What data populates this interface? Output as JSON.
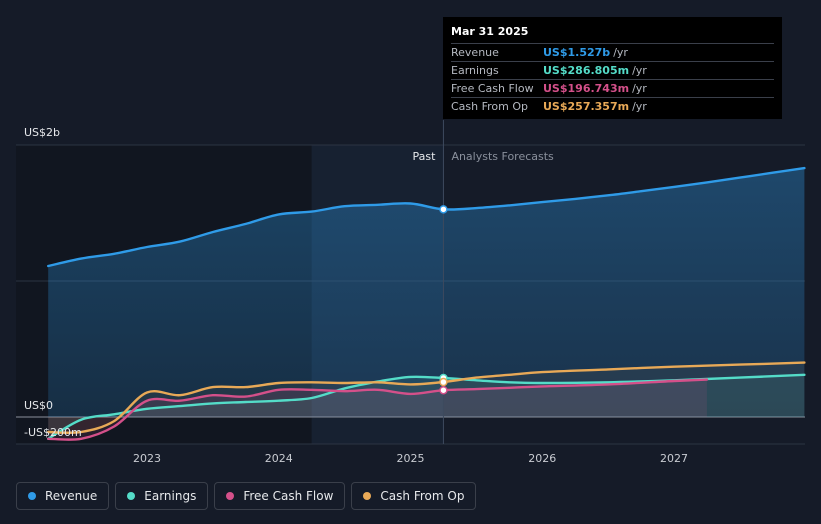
{
  "tooltip": {
    "date": "Mar 31 2025",
    "rows": [
      {
        "name": "Revenue",
        "value": "US$1.527b",
        "unit": "/yr",
        "color": "#2f9be8"
      },
      {
        "name": "Earnings",
        "value": "US$286.805m",
        "unit": "/yr",
        "color": "#54dcc8"
      },
      {
        "name": "Free Cash Flow",
        "value": "US$196.743m",
        "unit": "/yr",
        "color": "#d4508a"
      },
      {
        "name": "Cash From Op",
        "value": "US$257.357m",
        "unit": "/yr",
        "color": "#e8a957"
      }
    ]
  },
  "labels": {
    "past": "Past",
    "forecast": "Analysts Forecasts"
  },
  "legend": [
    {
      "name": "Revenue",
      "color": "#2f9be8"
    },
    {
      "name": "Earnings",
      "color": "#54dcc8"
    },
    {
      "name": "Free Cash Flow",
      "color": "#d4508a"
    },
    {
      "name": "Cash From Op",
      "color": "#e8a957"
    }
  ],
  "chart_data": {
    "type": "line",
    "title": "",
    "xlabel": "",
    "ylabel": "",
    "x_ticks": [
      2023,
      2024,
      2025,
      2026,
      2027
    ],
    "y_ticks": [
      {
        "value": 2000,
        "label": "US$2b"
      },
      {
        "value": 0,
        "label": "US$0"
      },
      {
        "value": -200,
        "label": "-US$200m"
      }
    ],
    "unit": "US$ millions",
    "xlim": [
      2022.1,
      2027.99
    ],
    "ylim": [
      -200,
      2000
    ],
    "past_end": 2025.25,
    "grid": true,
    "series": [
      {
        "name": "Revenue",
        "color": "#2f9be8",
        "points": [
          [
            2022.25,
            1110
          ],
          [
            2022.5,
            1165
          ],
          [
            2022.75,
            1200
          ],
          [
            2023.0,
            1250
          ],
          [
            2023.25,
            1290
          ],
          [
            2023.5,
            1360
          ],
          [
            2023.75,
            1420
          ],
          [
            2024.0,
            1490
          ],
          [
            2024.25,
            1510
          ],
          [
            2024.5,
            1550
          ],
          [
            2024.75,
            1560
          ],
          [
            2025.0,
            1570
          ],
          [
            2025.25,
            1527
          ],
          [
            2025.5,
            1536
          ],
          [
            2025.75,
            1556
          ],
          [
            2026.0,
            1580
          ],
          [
            2026.25,
            1604
          ],
          [
            2026.5,
            1630
          ],
          [
            2026.75,
            1660
          ],
          [
            2027.0,
            1692
          ],
          [
            2027.25,
            1725
          ],
          [
            2027.5,
            1760
          ],
          [
            2027.75,
            1796
          ],
          [
            2027.99,
            1830
          ]
        ]
      },
      {
        "name": "Earnings",
        "color": "#54dcc8",
        "points": [
          [
            2022.25,
            -160
          ],
          [
            2022.5,
            -20
          ],
          [
            2022.75,
            20
          ],
          [
            2023.0,
            60
          ],
          [
            2023.25,
            80
          ],
          [
            2023.5,
            100
          ],
          [
            2023.75,
            110
          ],
          [
            2024.0,
            120
          ],
          [
            2024.25,
            140
          ],
          [
            2024.5,
            210
          ],
          [
            2024.75,
            260
          ],
          [
            2025.0,
            295
          ],
          [
            2025.25,
            287
          ],
          [
            2025.5,
            270
          ],
          [
            2025.75,
            255
          ],
          [
            2026.0,
            250
          ],
          [
            2026.5,
            255
          ],
          [
            2027.0,
            270
          ],
          [
            2027.5,
            290
          ],
          [
            2027.99,
            310
          ]
        ]
      },
      {
        "name": "Free Cash Flow",
        "color": "#d4508a",
        "points": [
          [
            2022.25,
            -160
          ],
          [
            2022.5,
            -160
          ],
          [
            2022.75,
            -70
          ],
          [
            2023.0,
            120
          ],
          [
            2023.25,
            120
          ],
          [
            2023.5,
            160
          ],
          [
            2023.75,
            150
          ],
          [
            2024.0,
            200
          ],
          [
            2024.25,
            200
          ],
          [
            2024.5,
            190
          ],
          [
            2024.75,
            200
          ],
          [
            2025.0,
            170
          ],
          [
            2025.25,
            197
          ],
          [
            2025.5,
            205
          ],
          [
            2025.75,
            215
          ],
          [
            2026.0,
            225
          ],
          [
            2026.5,
            240
          ],
          [
            2027.0,
            265
          ],
          [
            2027.25,
            275
          ]
        ]
      },
      {
        "name": "Cash From Op",
        "color": "#e8a957",
        "points": [
          [
            2022.25,
            -110
          ],
          [
            2022.5,
            -110
          ],
          [
            2022.75,
            -30
          ],
          [
            2023.0,
            180
          ],
          [
            2023.25,
            160
          ],
          [
            2023.5,
            220
          ],
          [
            2023.75,
            220
          ],
          [
            2024.0,
            250
          ],
          [
            2024.25,
            255
          ],
          [
            2024.5,
            250
          ],
          [
            2024.75,
            255
          ],
          [
            2025.0,
            240
          ],
          [
            2025.25,
            257
          ],
          [
            2025.5,
            290
          ],
          [
            2025.75,
            310
          ],
          [
            2026.0,
            330
          ],
          [
            2026.5,
            350
          ],
          [
            2027.0,
            370
          ],
          [
            2027.5,
            385
          ],
          [
            2027.99,
            400
          ]
        ]
      }
    ]
  }
}
